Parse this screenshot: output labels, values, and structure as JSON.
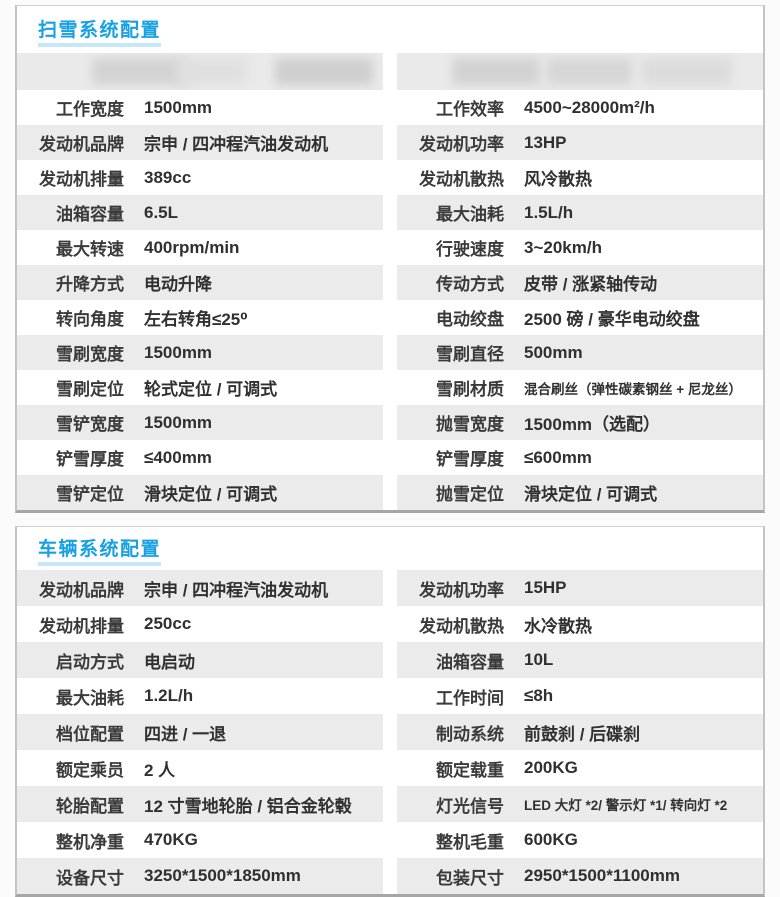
{
  "colors": {
    "accent_blue": "#18a1e2",
    "title_underline": "#c5e8f9",
    "row_stripe_gray": "#ebebeb",
    "panel_border": "#c3c3c3"
  },
  "sections": [
    {
      "title": "扫雪系统配置",
      "redacted_row": true,
      "first_row_stripe": "white",
      "rows": [
        {
          "left": {
            "label": "工作宽度",
            "value": "1500mm"
          },
          "right": {
            "label": "工作效率",
            "value": "4500~28000m²/h"
          }
        },
        {
          "left": {
            "label": "发动机品牌",
            "value": "宗申 / 四冲程汽油发动机"
          },
          "right": {
            "label": "发动机功率",
            "value": "13HP"
          }
        },
        {
          "left": {
            "label": "发动机排量",
            "value": "389cc"
          },
          "right": {
            "label": "发动机散热",
            "value": "风冷散热"
          }
        },
        {
          "left": {
            "label": "油箱容量",
            "value": "6.5L"
          },
          "right": {
            "label": "最大油耗",
            "value": "1.5L/h"
          }
        },
        {
          "left": {
            "label": "最大转速",
            "value": "400rpm/min"
          },
          "right": {
            "label": "行驶速度",
            "value": "3~20km/h"
          }
        },
        {
          "left": {
            "label": "升降方式",
            "value": "电动升降"
          },
          "right": {
            "label": "传动方式",
            "value": "皮带 / 涨紧轴传动"
          }
        },
        {
          "left": {
            "label": "转向角度",
            "value": "左右转角≤25⁰"
          },
          "right": {
            "label": "电动绞盘",
            "value": "2500 磅 / 豪华电动绞盘"
          }
        },
        {
          "left": {
            "label": "雪刷宽度",
            "value": "1500mm"
          },
          "right": {
            "label": "雪刷直径",
            "value": "500mm"
          }
        },
        {
          "left": {
            "label": "雪刷定位",
            "value": "轮式定位 / 可调式"
          },
          "right": {
            "label": "雪刷材质",
            "value": "混合刷丝（弹性碳素钢丝 + 尼龙丝）",
            "small": true
          }
        },
        {
          "left": {
            "label": "雪铲宽度",
            "value": "1500mm"
          },
          "right": {
            "label": "抛雪宽度",
            "value": "1500mm（选配）"
          }
        },
        {
          "left": {
            "label": "铲雪厚度",
            "value": "≤400mm"
          },
          "right": {
            "label": "铲雪厚度",
            "value": "≤600mm"
          }
        },
        {
          "left": {
            "label": "雪铲定位",
            "value": "滑块定位 / 可调式"
          },
          "right": {
            "label": "抛雪定位",
            "value": "滑块定位 / 可调式"
          }
        }
      ]
    },
    {
      "title": "车辆系统配置",
      "redacted_row": false,
      "first_row_stripe": "gray",
      "rows": [
        {
          "left": {
            "label": "发动机品牌",
            "value": "宗申 / 四冲程汽油发动机"
          },
          "right": {
            "label": "发动机功率",
            "value": "15HP"
          }
        },
        {
          "left": {
            "label": "发动机排量",
            "value": "250cc"
          },
          "right": {
            "label": "发动机散热",
            "value": "水冷散热"
          }
        },
        {
          "left": {
            "label": "启动方式",
            "value": "电启动"
          },
          "right": {
            "label": "油箱容量",
            "value": "10L"
          }
        },
        {
          "left": {
            "label": "最大油耗",
            "value": "1.2L/h"
          },
          "right": {
            "label": "工作时间",
            "value": "≤8h"
          }
        },
        {
          "left": {
            "label": "档位配置",
            "value": "四进 / 一退"
          },
          "right": {
            "label": "制动系统",
            "value": "前鼓刹 / 后碟刹"
          }
        },
        {
          "left": {
            "label": "额定乘员",
            "value": "2 人"
          },
          "right": {
            "label": "额定载重",
            "value": "200KG"
          }
        },
        {
          "left": {
            "label": "轮胎配置",
            "value": "12 寸雪地轮胎 / 铝合金轮毂"
          },
          "right": {
            "label": "灯光信号",
            "value": "LED 大灯 *2/ 警示灯 *1/ 转向灯 *2",
            "small": true
          }
        },
        {
          "left": {
            "label": "整机净重",
            "value": "470KG"
          },
          "right": {
            "label": "整机毛重",
            "value": "600KG"
          }
        },
        {
          "left": {
            "label": "设备尺寸",
            "value": "3250*1500*1850mm"
          },
          "right": {
            "label": "包装尺寸",
            "value": "2950*1500*1100mm"
          }
        }
      ]
    }
  ]
}
